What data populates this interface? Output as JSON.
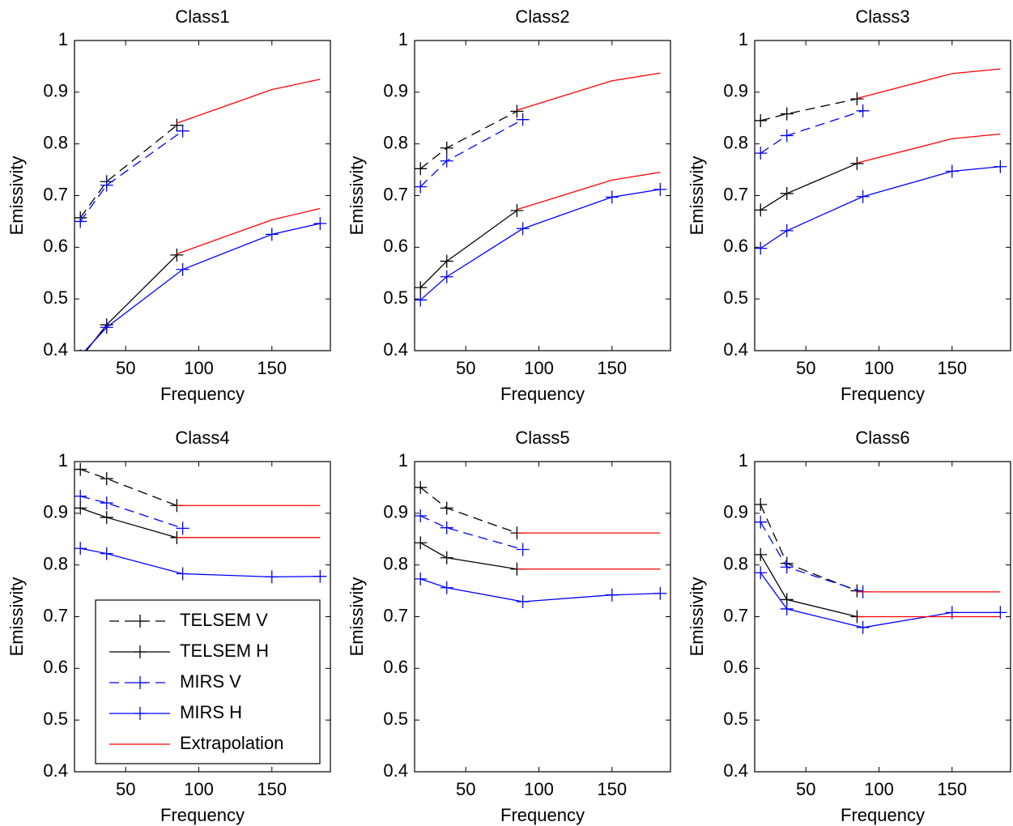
{
  "chart_data": [
    {
      "type": "line",
      "title": "Class1",
      "xlabel": "Frequency",
      "ylabel": "Emissivity",
      "xlim": [
        15,
        190
      ],
      "ylim": [
        0.4,
        1
      ],
      "xticks": [
        50,
        100,
        150
      ],
      "yticks": [
        0.4,
        0.5,
        0.6,
        0.7,
        0.8,
        0.9,
        1
      ],
      "series": [
        {
          "name": "TELSEM V",
          "color": "#000000",
          "dashed": true,
          "marker": "+",
          "x": [
            19,
            37,
            85
          ],
          "values": [
            0.657,
            0.727,
            0.836
          ]
        },
        {
          "name": "TELSEM H",
          "color": "#000000",
          "dashed": false,
          "marker": "+",
          "x": [
            19,
            37,
            85
          ],
          "values": [
            0.385,
            0.45,
            0.585
          ]
        },
        {
          "name": "MIRS V",
          "color": "#0000ff",
          "dashed": true,
          "marker": "+",
          "x": [
            19,
            37,
            89
          ],
          "values": [
            0.65,
            0.72,
            0.825
          ]
        },
        {
          "name": "MIRS H",
          "color": "#0000ff",
          "dashed": false,
          "marker": "+",
          "x": [
            19,
            37,
            89,
            150,
            183
          ],
          "values": [
            0.39,
            0.445,
            0.557,
            0.625,
            0.646
          ]
        },
        {
          "name": "Extrapolation",
          "color": "#ff0000",
          "dashed": false,
          "marker": "none",
          "x": [
            85,
            150,
            183,
            null,
            85,
            150,
            183
          ],
          "values": [
            0.84,
            0.905,
            0.925,
            null,
            0.587,
            0.653,
            0.675
          ]
        }
      ]
    },
    {
      "type": "line",
      "title": "Class2",
      "xlabel": "Frequency",
      "ylabel": "Emissivity",
      "xlim": [
        15,
        190
      ],
      "ylim": [
        0.4,
        1
      ],
      "xticks": [
        50,
        100,
        150
      ],
      "yticks": [
        0.4,
        0.5,
        0.6,
        0.7,
        0.8,
        0.9,
        1
      ],
      "series": [
        {
          "name": "TELSEM V",
          "color": "#000000",
          "dashed": true,
          "marker": "+",
          "x": [
            19,
            37,
            85
          ],
          "values": [
            0.752,
            0.792,
            0.863
          ]
        },
        {
          "name": "TELSEM H",
          "color": "#000000",
          "dashed": false,
          "marker": "+",
          "x": [
            19,
            37,
            85
          ],
          "values": [
            0.522,
            0.573,
            0.671
          ]
        },
        {
          "name": "MIRS V",
          "color": "#0000ff",
          "dashed": true,
          "marker": "+",
          "x": [
            19,
            37,
            89
          ],
          "values": [
            0.717,
            0.767,
            0.847
          ]
        },
        {
          "name": "MIRS H",
          "color": "#0000ff",
          "dashed": false,
          "marker": "+",
          "x": [
            19,
            37,
            89,
            150,
            183
          ],
          "values": [
            0.498,
            0.543,
            0.636,
            0.697,
            0.712
          ]
        },
        {
          "name": "Extrapolation",
          "color": "#ff0000",
          "dashed": false,
          "marker": "none",
          "x": [
            85,
            150,
            183,
            null,
            85,
            150,
            183
          ],
          "values": [
            0.865,
            0.922,
            0.937,
            null,
            0.673,
            0.73,
            0.745
          ]
        }
      ]
    },
    {
      "type": "line",
      "title": "Class3",
      "xlabel": "Frequency",
      "ylabel": "Emissivity",
      "xlim": [
        15,
        190
      ],
      "ylim": [
        0.4,
        1
      ],
      "xticks": [
        50,
        100,
        150
      ],
      "yticks": [
        0.4,
        0.5,
        0.6,
        0.7,
        0.8,
        0.9,
        1
      ],
      "series": [
        {
          "name": "TELSEM V",
          "color": "#000000",
          "dashed": true,
          "marker": "+",
          "x": [
            19,
            37,
            85
          ],
          "values": [
            0.845,
            0.858,
            0.887
          ]
        },
        {
          "name": "TELSEM H",
          "color": "#000000",
          "dashed": false,
          "marker": "+",
          "x": [
            19,
            37,
            85
          ],
          "values": [
            0.672,
            0.704,
            0.762
          ]
        },
        {
          "name": "MIRS V",
          "color": "#0000ff",
          "dashed": true,
          "marker": "+",
          "x": [
            19,
            37,
            89
          ],
          "values": [
            0.782,
            0.816,
            0.864
          ]
        },
        {
          "name": "MIRS H",
          "color": "#0000ff",
          "dashed": false,
          "marker": "+",
          "x": [
            19,
            37,
            89,
            150,
            183
          ],
          "values": [
            0.598,
            0.632,
            0.698,
            0.747,
            0.756
          ]
        },
        {
          "name": "Extrapolation",
          "color": "#ff0000",
          "dashed": false,
          "marker": "none",
          "x": [
            85,
            150,
            183,
            null,
            85,
            150,
            183
          ],
          "values": [
            0.888,
            0.936,
            0.945,
            null,
            0.763,
            0.81,
            0.819
          ]
        }
      ]
    },
    {
      "type": "line",
      "title": "Class4",
      "xlabel": "Frequency",
      "ylabel": "Emissivity",
      "xlim": [
        15,
        190
      ],
      "ylim": [
        0.4,
        1
      ],
      "xticks": [
        50,
        100,
        150
      ],
      "yticks": [
        0.4,
        0.5,
        0.6,
        0.7,
        0.8,
        0.9,
        1
      ],
      "legend": "lower left",
      "series": [
        {
          "name": "TELSEM V",
          "color": "#000000",
          "dashed": true,
          "marker": "+",
          "x": [
            19,
            37,
            85
          ],
          "values": [
            0.985,
            0.967,
            0.915
          ]
        },
        {
          "name": "TELSEM H",
          "color": "#000000",
          "dashed": false,
          "marker": "+",
          "x": [
            19,
            37,
            85
          ],
          "values": [
            0.91,
            0.892,
            0.853
          ]
        },
        {
          "name": "MIRS V",
          "color": "#0000ff",
          "dashed": true,
          "marker": "+",
          "x": [
            19,
            37,
            89
          ],
          "values": [
            0.933,
            0.92,
            0.871
          ]
        },
        {
          "name": "MIRS H",
          "color": "#0000ff",
          "dashed": false,
          "marker": "+",
          "x": [
            19,
            37,
            89,
            150,
            183
          ],
          "values": [
            0.832,
            0.822,
            0.783,
            0.777,
            0.778
          ]
        },
        {
          "name": "Extrapolation",
          "color": "#ff0000",
          "dashed": false,
          "marker": "none",
          "x": [
            85,
            183,
            null,
            85,
            183
          ],
          "values": [
            0.915,
            0.915,
            null,
            0.853,
            0.853
          ]
        }
      ]
    },
    {
      "type": "line",
      "title": "Class5",
      "xlabel": "Frequency",
      "ylabel": "Emissivity",
      "xlim": [
        15,
        190
      ],
      "ylim": [
        0.4,
        1
      ],
      "xticks": [
        50,
        100,
        150
      ],
      "yticks": [
        0.4,
        0.5,
        0.6,
        0.7,
        0.8,
        0.9,
        1
      ],
      "series": [
        {
          "name": "TELSEM V",
          "color": "#000000",
          "dashed": true,
          "marker": "+",
          "x": [
            19,
            37,
            85
          ],
          "values": [
            0.95,
            0.91,
            0.862
          ]
        },
        {
          "name": "TELSEM H",
          "color": "#000000",
          "dashed": false,
          "marker": "+",
          "x": [
            19,
            37,
            85
          ],
          "values": [
            0.843,
            0.814,
            0.792
          ]
        },
        {
          "name": "MIRS V",
          "color": "#0000ff",
          "dashed": true,
          "marker": "+",
          "x": [
            19,
            37,
            89
          ],
          "values": [
            0.895,
            0.872,
            0.83
          ]
        },
        {
          "name": "MIRS H",
          "color": "#0000ff",
          "dashed": false,
          "marker": "+",
          "x": [
            19,
            37,
            89,
            150,
            183
          ],
          "values": [
            0.773,
            0.756,
            0.729,
            0.742,
            0.745
          ]
        },
        {
          "name": "Extrapolation",
          "color": "#ff0000",
          "dashed": false,
          "marker": "none",
          "x": [
            85,
            183,
            null,
            85,
            183
          ],
          "values": [
            0.862,
            0.862,
            null,
            0.792,
            0.792
          ]
        }
      ]
    },
    {
      "type": "line",
      "title": "Class6",
      "xlabel": "Frequency",
      "ylabel": "Emissivity",
      "xlim": [
        15,
        190
      ],
      "ylim": [
        0.4,
        1
      ],
      "xticks": [
        50,
        100,
        150
      ],
      "yticks": [
        0.4,
        0.5,
        0.6,
        0.7,
        0.8,
        0.9,
        1
      ],
      "series": [
        {
          "name": "TELSEM V",
          "color": "#000000",
          "dashed": true,
          "marker": "+",
          "x": [
            19,
            37,
            85
          ],
          "values": [
            0.917,
            0.803,
            0.75
          ]
        },
        {
          "name": "TELSEM H",
          "color": "#000000",
          "dashed": false,
          "marker": "+",
          "x": [
            19,
            37,
            85
          ],
          "values": [
            0.82,
            0.733,
            0.7
          ]
        },
        {
          "name": "MIRS V",
          "color": "#0000ff",
          "dashed": true,
          "marker": "+",
          "x": [
            19,
            37,
            89
          ],
          "values": [
            0.883,
            0.796,
            0.748
          ]
        },
        {
          "name": "MIRS H",
          "color": "#0000ff",
          "dashed": false,
          "marker": "+",
          "x": [
            19,
            37,
            89,
            150,
            183
          ],
          "values": [
            0.785,
            0.715,
            0.679,
            0.708,
            0.708
          ]
        },
        {
          "name": "Extrapolation",
          "color": "#ff0000",
          "dashed": false,
          "marker": "none",
          "x": [
            85,
            183,
            null,
            85,
            183
          ],
          "values": [
            0.748,
            0.748,
            null,
            0.7,
            0.7
          ]
        }
      ]
    }
  ]
}
